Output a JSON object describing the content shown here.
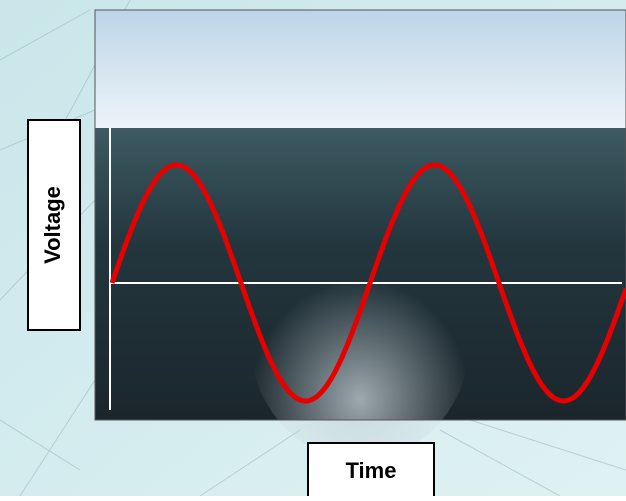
{
  "labels": {
    "y_axis": "Voltage",
    "x_axis": "Time"
  }
}
